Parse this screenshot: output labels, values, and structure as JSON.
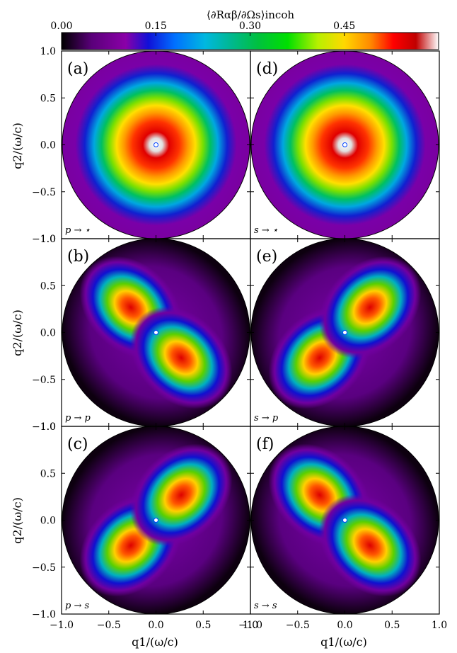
{
  "chart_data": {
    "type": "heatmap",
    "colorbar": {
      "label": "⟨∂Rαβ/∂Ωs⟩incoh",
      "ticks": [
        "0.00",
        "0.15",
        "0.30",
        "0.45"
      ],
      "tick_values": [
        0.0,
        0.15,
        0.3,
        0.45
      ],
      "range": [
        0.0,
        0.6
      ],
      "colormap": [
        "#000000",
        "#5a007a",
        "#8a00a8",
        "#1010d8",
        "#0070ff",
        "#00b8e0",
        "#00c870",
        "#00e000",
        "#b8f000",
        "#ffd800",
        "#ff8800",
        "#ff0000",
        "#c00000",
        "#ffffff"
      ]
    },
    "xlabel": "q1/(ω/c)",
    "ylabel": "q2/(ω/c)",
    "xlim": [
      -1.0,
      1.0
    ],
    "ylim": [
      -1.0,
      1.0
    ],
    "x_ticks": [
      "−1.0",
      "−0.5",
      "0.0",
      "0.5",
      "1.0"
    ],
    "y_ticks": [
      "1.0",
      "0.5",
      "0.0",
      "−0.5",
      "−1.0"
    ],
    "panels": [
      {
        "letter": "(a)",
        "note": "p → ⋆",
        "pattern": "ring",
        "angle": 0
      },
      {
        "letter": "(d)",
        "note": "s → ⋆",
        "pattern": "ring",
        "angle": 0
      },
      {
        "letter": "(b)",
        "note": "p → p",
        "pattern": "lobes",
        "angle": 45
      },
      {
        "letter": "(e)",
        "note": "s → p",
        "pattern": "lobes",
        "angle": -45
      },
      {
        "letter": "(c)",
        "note": "p → s",
        "pattern": "lobes",
        "angle": -45
      },
      {
        "letter": "(f)",
        "note": "s → s",
        "pattern": "lobes",
        "angle": 45
      }
    ]
  }
}
